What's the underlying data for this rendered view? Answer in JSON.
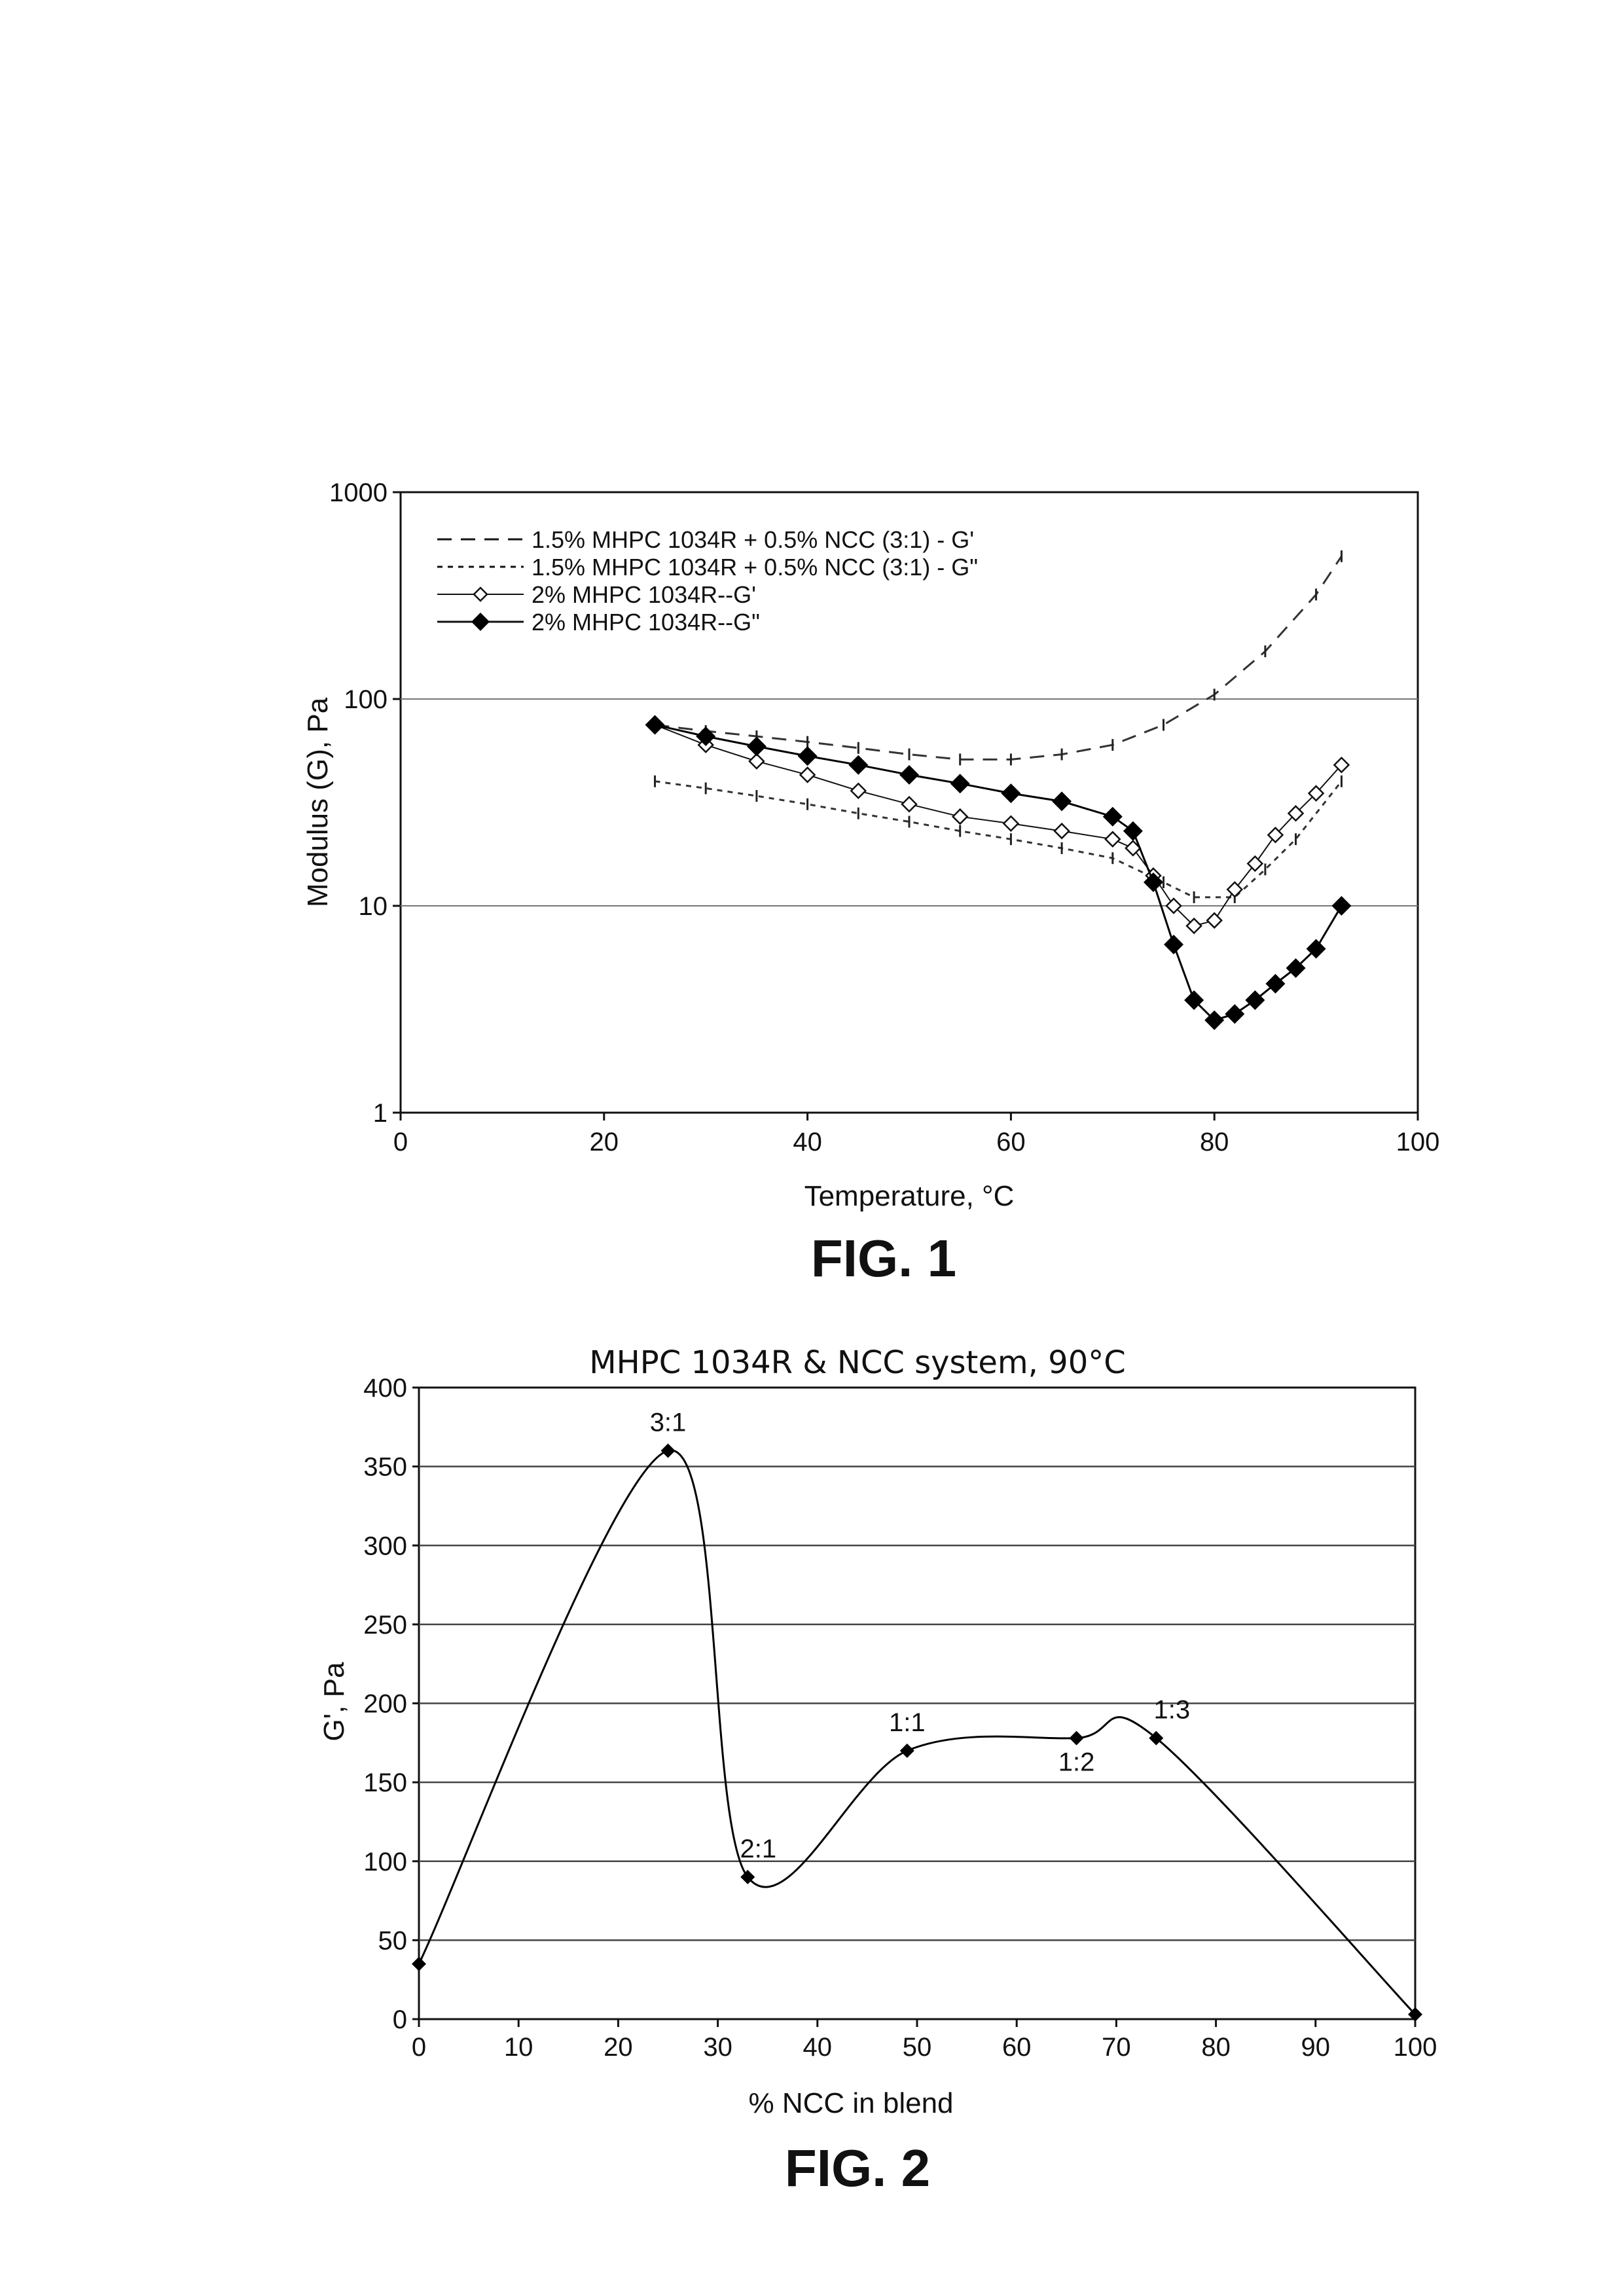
{
  "chart_data": [
    {
      "type": "line",
      "figure_label": "FIG. 1",
      "xlabel": "Temperature, °C",
      "ylabel": "Modulus (G), Pa",
      "xlim": [
        0,
        100
      ],
      "ylim": [
        1,
        1000
      ],
      "yscale": "log",
      "x_ticks": [
        "0",
        "20",
        "40",
        "60",
        "80",
        "100"
      ],
      "y_ticks": [
        "1",
        "10",
        "100",
        "1000"
      ],
      "grid": "horizontal",
      "legend_position": "top-left",
      "series": [
        {
          "name": "1.5% MHPC 1034R + 0.5% NCC (3:1) - G'",
          "color": "#333333",
          "x": [
            25,
            30,
            35,
            40,
            45,
            50,
            55,
            60,
            65,
            70,
            75,
            80,
            85,
            90,
            92.5
          ],
          "y": [
            75,
            70,
            66,
            62,
            58,
            54,
            51,
            51,
            54,
            60,
            75,
            105,
            170,
            320,
            490
          ]
        },
        {
          "name": "1.5% MHPC 1034R + 0.5% NCC (3:1) - G\"",
          "color": "#333333",
          "x": [
            25,
            30,
            35,
            40,
            45,
            50,
            55,
            60,
            65,
            70,
            75,
            78,
            82,
            85,
            88,
            92.5
          ],
          "y": [
            40,
            37,
            34,
            31,
            28,
            25.5,
            23,
            21,
            19,
            17,
            13,
            11,
            11,
            15,
            21,
            40
          ]
        },
        {
          "name": "2% MHPC 1034R--G'",
          "color": "#111111",
          "x": [
            25,
            30,
            35,
            40,
            45,
            50,
            55,
            60,
            65,
            70,
            72,
            74,
            76,
            78,
            80,
            82,
            84,
            86,
            88,
            90,
            92.5
          ],
          "y": [
            75,
            60,
            50,
            43,
            36,
            31,
            27,
            25,
            23,
            21,
            19,
            14,
            10,
            8,
            8.5,
            12,
            16,
            22,
            28,
            35,
            48
          ]
        },
        {
          "name": "2% MHPC 1034R--G\"",
          "color": "#000000",
          "x": [
            25,
            30,
            35,
            40,
            45,
            50,
            55,
            60,
            65,
            70,
            72,
            74,
            76,
            78,
            80,
            82,
            84,
            86,
            88,
            90,
            92.5
          ],
          "y": [
            75,
            66,
            59,
            53,
            48,
            43,
            39,
            35,
            32,
            27,
            23,
            13,
            6.5,
            3.5,
            2.8,
            3,
            3.5,
            4.2,
            5,
            6.2,
            10
          ]
        }
      ]
    },
    {
      "type": "line",
      "figure_label": "FIG. 2",
      "title": "MHPC 1034R & NCC system, 90°C",
      "xlabel": "% NCC in blend",
      "ylabel": "G', Pa",
      "xlim": [
        0,
        100
      ],
      "ylim": [
        0,
        400
      ],
      "x_ticks": [
        "0",
        "10",
        "20",
        "30",
        "40",
        "50",
        "60",
        "70",
        "80",
        "90",
        "100"
      ],
      "y_ticks": [
        "0",
        "50",
        "100",
        "150",
        "200",
        "250",
        "300",
        "350",
        "400"
      ],
      "grid": "horizontal",
      "series": [
        {
          "color": "#000000",
          "x": [
            0,
            25,
            33,
            49,
            66,
            74,
            100
          ],
          "y": [
            35,
            360,
            90,
            170,
            178,
            178,
            3
          ],
          "point_labels": [
            "",
            "3:1",
            "2:1",
            "1:1",
            "1:2",
            "1:3",
            ""
          ]
        }
      ]
    }
  ]
}
